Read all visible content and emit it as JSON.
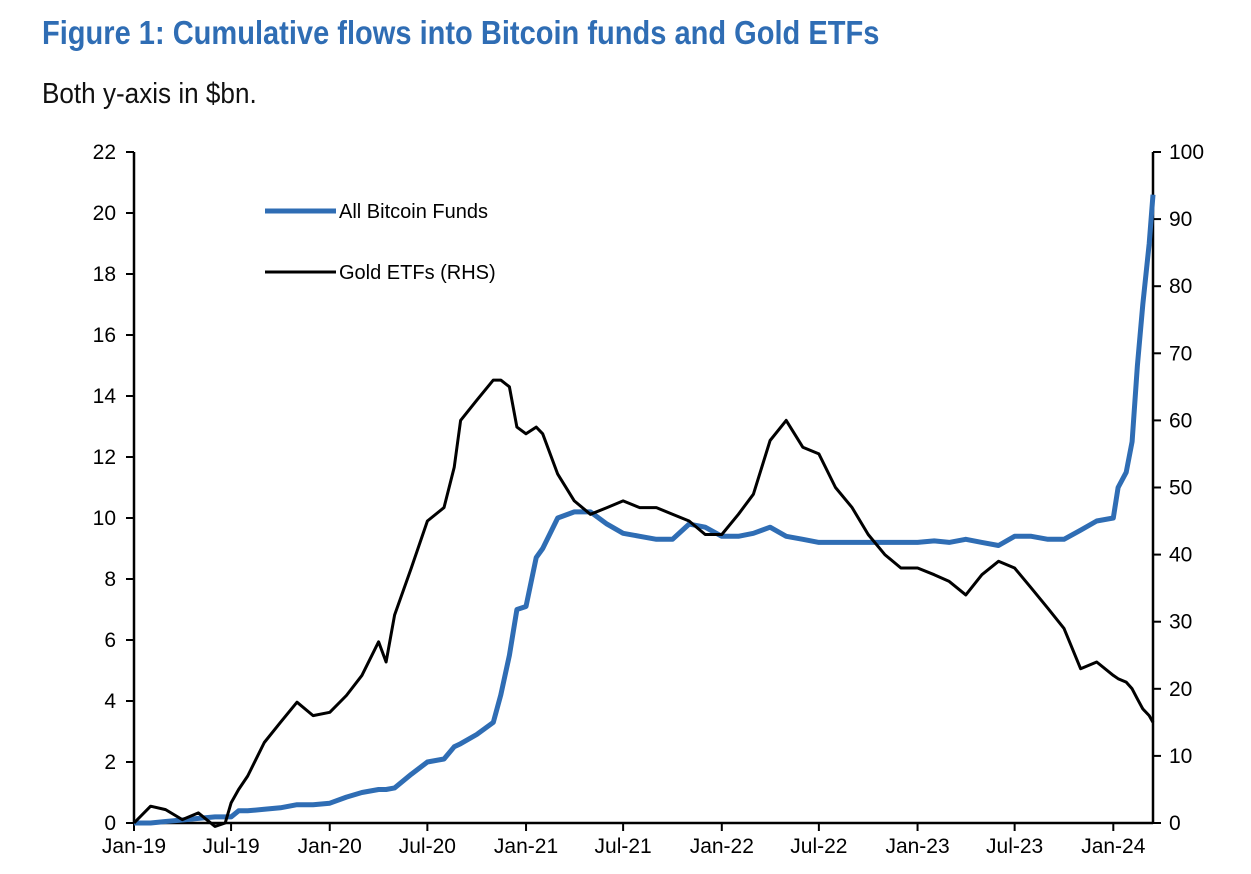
{
  "title": "Figure 1: Cumulative flows into Bitcoin funds and Gold ETFs",
  "subtitle": "Both y-axis in $bn.",
  "chart_data": {
    "type": "line",
    "title": "Figure 1: Cumulative flows into Bitcoin funds and Gold ETFs",
    "subtitle": "Both y-axis in $bn.",
    "xlim": [
      "2019-01-01",
      "2024-03-15"
    ],
    "x_ticks": [
      "Jan-19",
      "Jul-19",
      "Jan-20",
      "Jul-20",
      "Jan-21",
      "Jul-21",
      "Jan-22",
      "Jul-22",
      "Jan-23",
      "Jul-23",
      "Jan-24"
    ],
    "x_tick_dates": [
      "2019-01-01",
      "2019-07-01",
      "2020-01-01",
      "2020-07-01",
      "2021-01-01",
      "2021-07-01",
      "2022-01-01",
      "2022-07-01",
      "2023-01-01",
      "2023-07-01",
      "2024-01-01"
    ],
    "y_left": {
      "lim": [
        0,
        22
      ],
      "ticks": [
        0,
        2,
        4,
        6,
        8,
        10,
        12,
        14,
        16,
        18,
        20,
        22
      ]
    },
    "y_right": {
      "lim": [
        0,
        100
      ],
      "ticks": [
        0,
        10,
        20,
        30,
        40,
        50,
        60,
        70,
        80,
        90,
        100
      ]
    },
    "grid": false,
    "legend_placement": "top-left",
    "x": [
      "2019-01-01",
      "2019-02-01",
      "2019-03-01",
      "2019-04-01",
      "2019-05-01",
      "2019-06-01",
      "2019-06-20",
      "2019-07-01",
      "2019-07-15",
      "2019-08-01",
      "2019-09-01",
      "2019-10-01",
      "2019-11-01",
      "2019-12-01",
      "2020-01-01",
      "2020-02-01",
      "2020-03-01",
      "2020-04-01",
      "2020-04-15",
      "2020-05-01",
      "2020-06-01",
      "2020-07-01",
      "2020-08-01",
      "2020-08-20",
      "2020-09-01",
      "2020-10-01",
      "2020-11-01",
      "2020-11-15",
      "2020-12-01",
      "2020-12-15",
      "2021-01-01",
      "2021-01-20",
      "2021-02-01",
      "2021-03-01",
      "2021-04-01",
      "2021-05-01",
      "2021-06-01",
      "2021-07-01",
      "2021-08-01",
      "2021-09-01",
      "2021-10-01",
      "2021-11-01",
      "2021-12-01",
      "2022-01-01",
      "2022-02-01",
      "2022-03-01",
      "2022-04-01",
      "2022-05-01",
      "2022-06-01",
      "2022-07-01",
      "2022-08-01",
      "2022-09-01",
      "2022-10-01",
      "2022-11-01",
      "2022-12-01",
      "2023-01-01",
      "2023-02-01",
      "2023-03-01",
      "2023-04-01",
      "2023-05-01",
      "2023-06-01",
      "2023-07-01",
      "2023-08-01",
      "2023-09-01",
      "2023-10-01",
      "2023-11-01",
      "2023-12-01",
      "2024-01-01",
      "2024-01-10",
      "2024-01-25",
      "2024-02-05",
      "2024-02-15",
      "2024-02-25",
      "2024-03-08",
      "2024-03-15"
    ],
    "series": [
      {
        "name": "All Bitcoin Funds",
        "axis": "left",
        "color": "#2f6db4",
        "values": [
          0,
          0,
          0.05,
          0.1,
          0.15,
          0.2,
          0.2,
          0.2,
          0.4,
          0.4,
          0.45,
          0.5,
          0.6,
          0.6,
          0.65,
          0.85,
          1.0,
          1.1,
          1.1,
          1.15,
          1.6,
          2.0,
          2.1,
          2.5,
          2.6,
          2.9,
          3.3,
          4.2,
          5.5,
          7.0,
          7.1,
          8.7,
          9.0,
          10.0,
          10.2,
          10.2,
          9.8,
          9.5,
          9.4,
          9.3,
          9.3,
          9.8,
          9.7,
          9.4,
          9.4,
          9.5,
          9.7,
          9.4,
          9.3,
          9.2,
          9.2,
          9.2,
          9.2,
          9.2,
          9.2,
          9.2,
          9.25,
          9.2,
          9.3,
          9.2,
          9.1,
          9.4,
          9.4,
          9.3,
          9.3,
          9.6,
          9.9,
          10.0,
          11.0,
          11.5,
          12.5,
          15.0,
          17.0,
          19.0,
          20.6
        ]
      },
      {
        "name": "Gold ETFs (RHS)",
        "axis": "right",
        "color": "#000000",
        "values": [
          0,
          2.5,
          2,
          0.5,
          1.5,
          -0.5,
          0,
          3,
          5,
          7,
          12,
          15,
          18,
          16,
          16.5,
          19,
          22,
          27,
          24,
          31,
          38,
          45,
          47,
          53,
          60,
          63,
          66,
          66,
          65,
          59,
          58,
          59,
          58,
          52,
          48,
          46,
          47,
          48,
          47,
          47,
          46,
          45,
          43,
          43,
          46,
          49,
          57,
          60,
          56,
          55,
          50,
          47,
          43,
          40,
          38,
          38,
          37,
          36,
          34,
          37,
          39,
          38,
          35,
          32,
          29,
          23,
          24,
          22,
          21.5,
          21,
          20,
          18.5,
          17,
          16,
          15
        ]
      }
    ]
  }
}
